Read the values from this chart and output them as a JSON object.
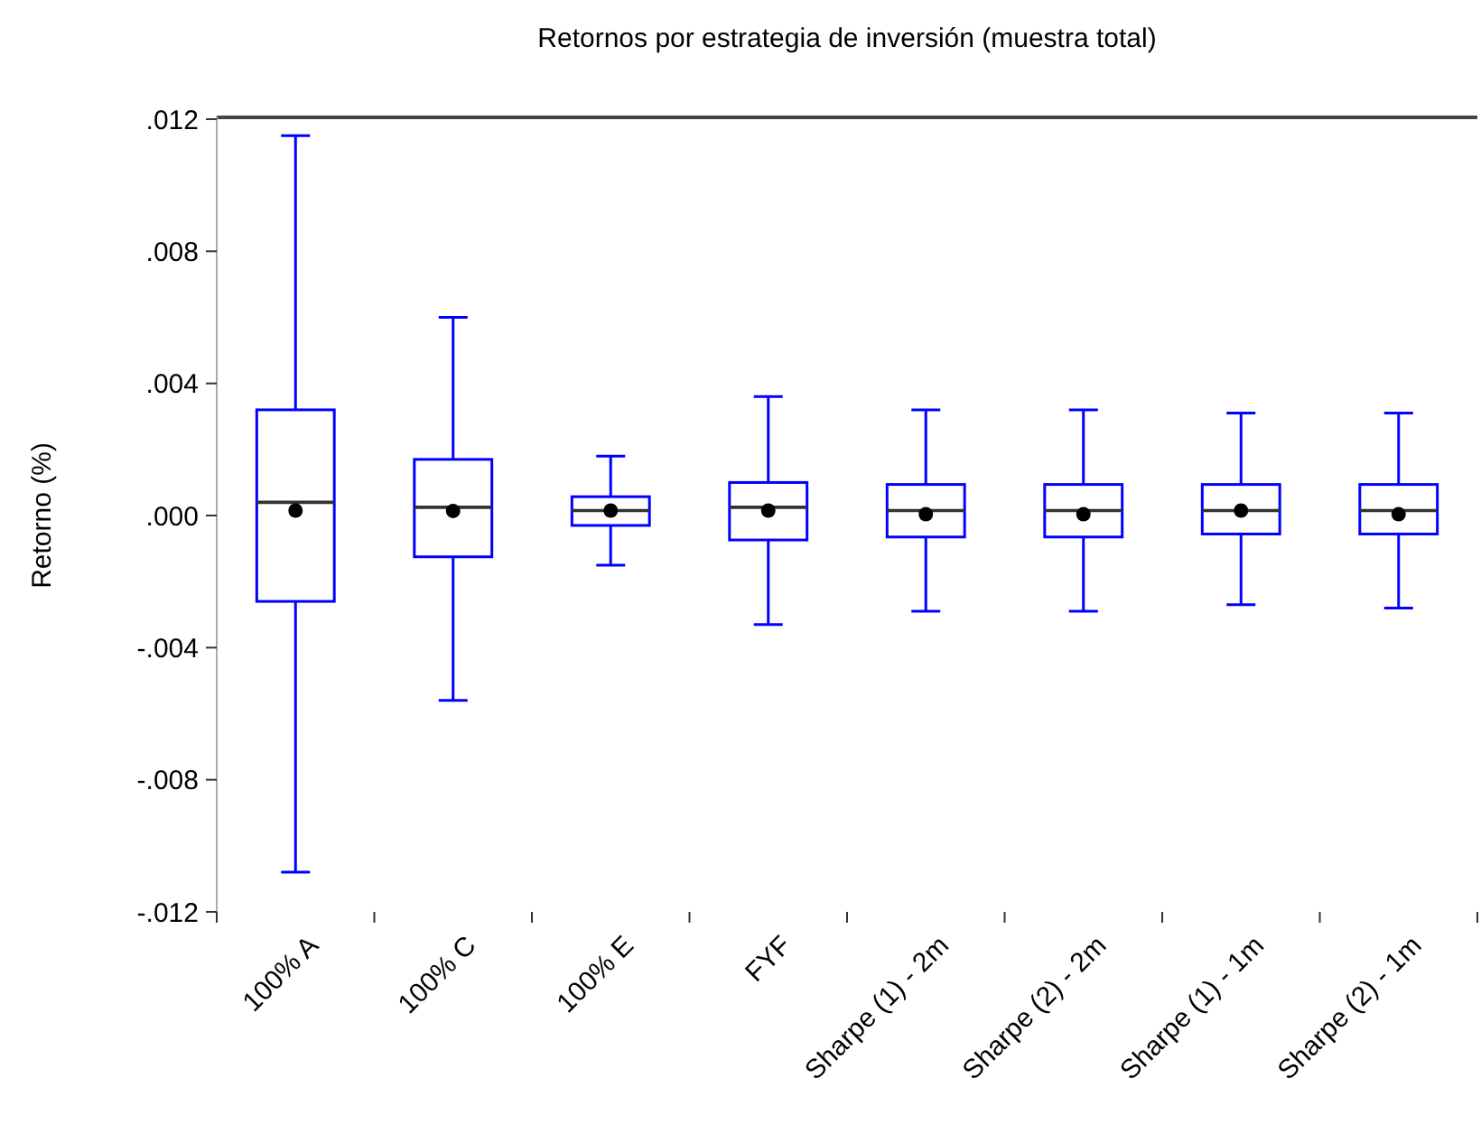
{
  "chart_data": {
    "type": "box",
    "title": "Retornos por estrategia de inversión (muestra total)",
    "ylabel": "Retorno (%)",
    "categories": [
      "100% A",
      "100% C",
      "100% E",
      "FYF",
      "Sharpe (1) - 2m",
      "Sharpe (2) - 2m",
      "Sharpe (1) - 1m",
      "Sharpe (2) - 1m"
    ],
    "color": "#0000ff",
    "boxes": [
      {
        "low": -0.0108,
        "q1": -0.0026,
        "median": 0.0004,
        "q3": 0.0032,
        "high": 0.0115,
        "mean": 0.00015
      },
      {
        "low": -0.0056,
        "q1": -0.00125,
        "median": 0.00025,
        "q3": 0.0017,
        "high": 0.006,
        "mean": 0.00014
      },
      {
        "low": -0.0015,
        "q1": -0.0003,
        "median": 0.00015,
        "q3": 0.00057,
        "high": 0.0018,
        "mean": 0.00015
      },
      {
        "low": -0.0033,
        "q1": -0.00074,
        "median": 0.00025,
        "q3": 0.001,
        "high": 0.0036,
        "mean": 0.00015
      },
      {
        "low": -0.0029,
        "q1": -0.00065,
        "median": 0.00015,
        "q3": 0.00094,
        "high": 0.0032,
        "mean": 4e-05
      },
      {
        "low": -0.0029,
        "q1": -0.00065,
        "median": 0.00015,
        "q3": 0.00094,
        "high": 0.0032,
        "mean": 4e-05
      },
      {
        "low": -0.0027,
        "q1": -0.00056,
        "median": 0.00015,
        "q3": 0.00094,
        "high": 0.0031,
        "mean": 0.00015
      },
      {
        "low": -0.0028,
        "q1": -0.00056,
        "median": 0.00015,
        "q3": 0.00094,
        "high": 0.0031,
        "mean": 4e-05
      }
    ],
    "ylim": [
      -0.012,
      0.012
    ],
    "yticks": [
      {
        "value": -0.012,
        "label": "-.012"
      },
      {
        "value": -0.008,
        "label": "-.008"
      },
      {
        "value": -0.004,
        "label": "-.004"
      },
      {
        "value": 0,
        "label": ".000"
      },
      {
        "value": 0.004,
        "label": ".004"
      },
      {
        "value": 0.008,
        "label": ".008"
      },
      {
        "value": 0.012,
        "label": ".012"
      }
    ],
    "grid": false,
    "marker": "circle"
  }
}
